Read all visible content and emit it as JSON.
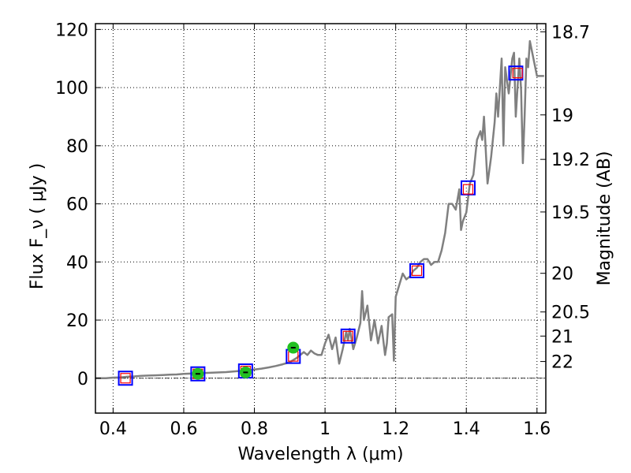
{
  "chart_data": {
    "type": "line",
    "xlabel": "Wavelength  λ (μm)",
    "ylabel": "Flux  F_ν  ( μJy )",
    "ylabel_right": "Magnitude (AB)",
    "xlim": [
      0.35,
      1.625
    ],
    "ylim": [
      -12,
      122
    ],
    "grid": true,
    "x_ticks": [
      0.4,
      0.6,
      0.8,
      1.0,
      1.2,
      1.4,
      1.6
    ],
    "x_tick_labels": [
      "0.4",
      "0.6",
      "0.8",
      "1",
      "1.2",
      "1.4",
      "1.6"
    ],
    "y_ticks": [
      0,
      20,
      40,
      60,
      80,
      100,
      120
    ],
    "y_tick_labels": [
      "0",
      "20",
      "40",
      "60",
      "80",
      "100",
      "120"
    ],
    "right_ticks": [
      {
        "label": "18.7",
        "flux": 119.2
      },
      {
        "label": "19",
        "flux": 90.6
      },
      {
        "label": "19.2",
        "flux": 75.3
      },
      {
        "label": "19.5",
        "flux": 57.2
      },
      {
        "label": "20",
        "flux": 36.1
      },
      {
        "label": "20.5",
        "flux": 22.8
      },
      {
        "label": "21",
        "flux": 14.5
      },
      {
        "label": "22",
        "flux": 5.75
      }
    ],
    "series": [
      {
        "style": "line",
        "color": "#808080",
        "x": [
          0.35,
          0.38,
          0.4,
          0.42,
          0.44,
          0.46,
          0.48,
          0.5,
          0.52,
          0.54,
          0.56,
          0.58,
          0.6,
          0.62,
          0.64,
          0.66,
          0.68,
          0.7,
          0.72,
          0.74,
          0.76,
          0.78,
          0.8,
          0.82,
          0.84,
          0.86,
          0.88,
          0.9,
          0.92,
          0.93,
          0.94,
          0.95,
          0.96,
          0.97,
          0.98,
          0.99,
          1.0,
          1.01,
          1.02,
          1.03,
          1.04,
          1.05,
          1.06,
          1.065,
          1.07,
          1.08,
          1.09,
          1.1,
          1.105,
          1.11,
          1.12,
          1.13,
          1.14,
          1.15,
          1.16,
          1.17,
          1.175,
          1.18,
          1.19,
          1.195,
          1.2,
          1.21,
          1.22,
          1.23,
          1.24,
          1.25,
          1.26,
          1.27,
          1.28,
          1.29,
          1.3,
          1.31,
          1.32,
          1.33,
          1.34,
          1.35,
          1.36,
          1.37,
          1.38,
          1.385,
          1.39,
          1.4,
          1.41,
          1.42,
          1.43,
          1.44,
          1.445,
          1.45,
          1.46,
          1.47,
          1.48,
          1.485,
          1.49,
          1.5,
          1.505,
          1.51,
          1.52,
          1.53,
          1.535,
          1.54,
          1.55,
          1.555,
          1.56,
          1.565,
          1.57,
          1.575,
          1.58,
          1.59,
          1.6,
          1.605,
          1.61,
          1.62
        ],
        "y": [
          0.0,
          0.0,
          0.2,
          0.3,
          0.5,
          0.6,
          0.8,
          0.9,
          1.0,
          1.1,
          1.2,
          1.3,
          1.5,
          1.6,
          1.7,
          1.8,
          1.9,
          2.0,
          2.1,
          2.3,
          2.5,
          2.7,
          3.0,
          3.3,
          3.7,
          4.2,
          4.8,
          5.5,
          7.0,
          8.0,
          9.0,
          8.0,
          9.5,
          8.5,
          8.0,
          8.0,
          12.0,
          15.0,
          10.0,
          14.0,
          5.0,
          10.0,
          16.0,
          13.0,
          17.0,
          10.0,
          14.0,
          19.0,
          30.0,
          20.0,
          25.0,
          13.0,
          20.0,
          12.0,
          18.0,
          8.0,
          12.0,
          21.0,
          22.0,
          6.0,
          28.0,
          32.0,
          36.0,
          34.0,
          35.0,
          37.0,
          38.0,
          40.0,
          41.0,
          41.0,
          39.0,
          40.0,
          40.0,
          44.0,
          50.0,
          60.0,
          60.0,
          58.0,
          65.0,
          51.0,
          54.0,
          57.0,
          67.0,
          70.0,
          82.0,
          85.0,
          82.0,
          90.0,
          67.0,
          76.0,
          88.0,
          98.0,
          90.0,
          110.0,
          80.0,
          107.0,
          98.0,
          110.0,
          112.0,
          90.0,
          110.0,
          99.0,
          74.0,
          90.0,
          110.0,
          107.0,
          116.0,
          110.0,
          104.0,
          104.0,
          104.0,
          104.0
        ]
      },
      {
        "style": "square",
        "color": "#0000ff",
        "x": [
          0.435,
          0.64,
          0.775,
          0.91,
          1.065,
          1.26,
          1.405,
          1.54
        ],
        "y": [
          0.0,
          1.5,
          2.5,
          7.5,
          14.5,
          37.0,
          65.5,
          105.0
        ]
      },
      {
        "style": "square",
        "color": "#ff0000",
        "x": [
          0.435,
          0.64,
          0.775,
          0.91,
          1.065,
          1.26,
          1.405,
          1.545
        ],
        "y": [
          0.0,
          1.5,
          2.5,
          7.5,
          14.5,
          37.0,
          65.0,
          105.0
        ]
      },
      {
        "style": "circle",
        "color": "#22c022",
        "x": [
          0.64,
          0.775,
          0.91
        ],
        "y": [
          1.5,
          2.0,
          10.5
        ]
      }
    ]
  }
}
